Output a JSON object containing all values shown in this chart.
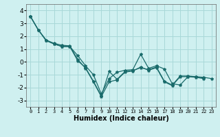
{
  "title": "",
  "xlabel": "Humidex (Indice chaleur)",
  "background_color": "#cff0f0",
  "grid_color": "#a8d8d8",
  "line_color": "#1a6b6b",
  "marker": "*",
  "ylim": [
    -3.5,
    4.5
  ],
  "xlim": [
    -0.5,
    23.5
  ],
  "yticks": [
    -3,
    -2,
    -1,
    0,
    1,
    2,
    3,
    4
  ],
  "xticks": [
    0,
    1,
    2,
    3,
    4,
    5,
    6,
    7,
    8,
    9,
    10,
    11,
    12,
    13,
    14,
    15,
    16,
    17,
    18,
    19,
    20,
    21,
    22,
    23
  ],
  "series": [
    [
      3.55,
      2.5,
      1.7,
      1.4,
      1.2,
      1.2,
      0.5,
      -0.3,
      -1.0,
      -2.5,
      -1.3,
      -0.8,
      -0.65,
      -0.6,
      0.6,
      -0.5,
      -0.3,
      -0.55,
      -1.7,
      -1.8,
      -1.15,
      -1.15,
      -1.2,
      -1.3
    ],
    [
      3.55,
      2.5,
      1.7,
      1.45,
      1.3,
      1.25,
      0.2,
      -0.5,
      -1.55,
      -2.7,
      -1.55,
      -1.4,
      -0.8,
      -0.7,
      -0.4,
      -0.65,
      -0.45,
      -1.55,
      -1.85,
      -1.15,
      -1.15,
      -1.2,
      -1.3,
      null
    ],
    [
      3.55,
      2.5,
      1.65,
      1.4,
      1.2,
      1.2,
      0.1,
      -0.45,
      -1.5,
      -2.65,
      -0.75,
      -1.35,
      -0.75,
      -0.68,
      -0.45,
      -0.6,
      -0.4,
      -1.5,
      -1.8,
      -1.1,
      -1.1,
      -1.15,
      -1.25,
      null
    ],
    [
      3.55,
      null,
      null,
      null,
      null,
      null,
      null,
      null,
      null,
      null,
      null,
      null,
      null,
      null,
      null,
      null,
      null,
      null,
      null,
      null,
      null,
      null,
      null,
      null
    ]
  ]
}
